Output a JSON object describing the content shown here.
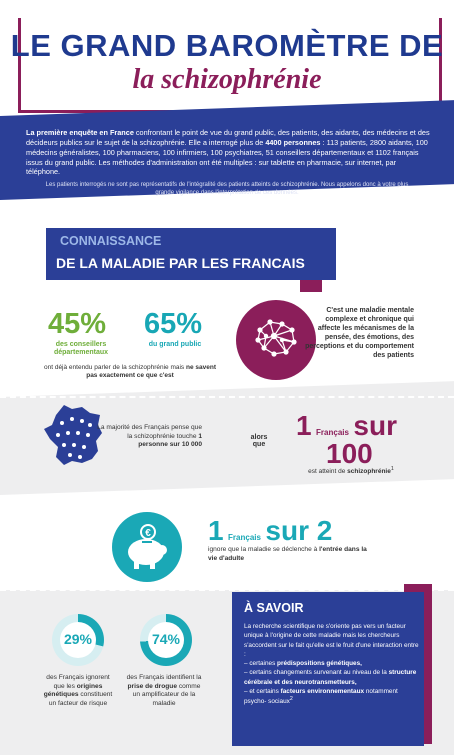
{
  "title": {
    "main": "LE GRAND BAROMÈTRE DE",
    "sub": "la schizophrénie"
  },
  "intro": {
    "p1_bold": "La première enquête en France",
    "p1_rest": " confrontant le point de vue du grand public, des patients, des aidants, des médecins et des décideurs publics sur le sujet de la schizophrénie. Elle a interrogé plus de ",
    "p1_count": "4400 personnes",
    "p1_tail": " : 113 patients, 2800 aidants, 100 médecins généralistes, 100 pharmaciens, 100 infirmiers, 100 psychiatres, 51 conseillers départementaux et 1102 français issus du grand public. Les méthodes d'administration ont été multiples : sur tablette en pharmacie, sur internet, par téléphone.",
    "disclaimer": "Les patients interrogés ne sont pas représentatifs de l'intégralité des patients atteints de schizophrénie. Nous appelons donc à votre plus grande vigilance dans l'interprétation de ces données."
  },
  "section1": {
    "line1": "CONNAISSANCE",
    "line2": "DE LA MALADIE PAR LES FRANCAIS"
  },
  "stats": {
    "pct45": "45%",
    "pct45_label": "des conseillers départementaux",
    "pct65": "65%",
    "pct65_label": "du grand public",
    "note_start": "ont déjà entendu parler de la schizophrénie mais ",
    "note_bold": "ne savent pas exactement ce que c'est",
    "definition": "C'est une maladie mentale complexe et chronique qui affecte les mécanismes de la pensée, des émotions, des perceptions et du comportement des patients"
  },
  "ratio": {
    "majority_start": "La majorité des Français pense que la schizophrénie touche ",
    "majority_bold": "1 personne sur 10 000",
    "alors": "alors que",
    "one": "1",
    "francais": "Français",
    "sur": "sur",
    "hundred": "100",
    "schizo_start": "est atteint de ",
    "schizo_bold": "schizophrénie",
    "footnote": "1"
  },
  "adult": {
    "one": "1",
    "francais": "Français",
    "sur2": "sur 2",
    "text_start": "ignore que la maladie se déclenche à ",
    "text_bold": "l'entrée dans la vie d'adulte"
  },
  "rings": {
    "r29": {
      "value": "29%",
      "fraction": 0.29,
      "text_start": "des Français ignorent que les ",
      "text_bold": "origines génétiques",
      "text_end": " constituent un facteur de risque"
    },
    "r74": {
      "value": "74%",
      "fraction": 0.74,
      "text_start": "des Français identifient la ",
      "text_bold": "prise de drogue",
      "text_end": " comme un amplificateur de la maladie"
    }
  },
  "savoir": {
    "title": "À SAVOIR",
    "p1": "La recherche scientifique ne s'oriente pas vers un facteur unique à l'origine de cette maladie mais les chercheurs s'accordent sur le fait qu'elle est le fruit d'une interaction entre :",
    "b1_start": "– certaines ",
    "b1_bold": "prédispositions génétiques,",
    "b2_start": "– certains changements survenant au niveau de la ",
    "b2_bold": "structure cérébrale et des neurotransmetteurs,",
    "b3_start": "– et certains ",
    "b3_bold": "facteurs environnementaux",
    "b3_end": " notamment psycho- sociaux",
    "footnote": "2"
  },
  "colors": {
    "blue": "#2b3f97",
    "plum": "#8b1e5a",
    "teal": "#1aa8b6",
    "green": "#6fae3a"
  }
}
